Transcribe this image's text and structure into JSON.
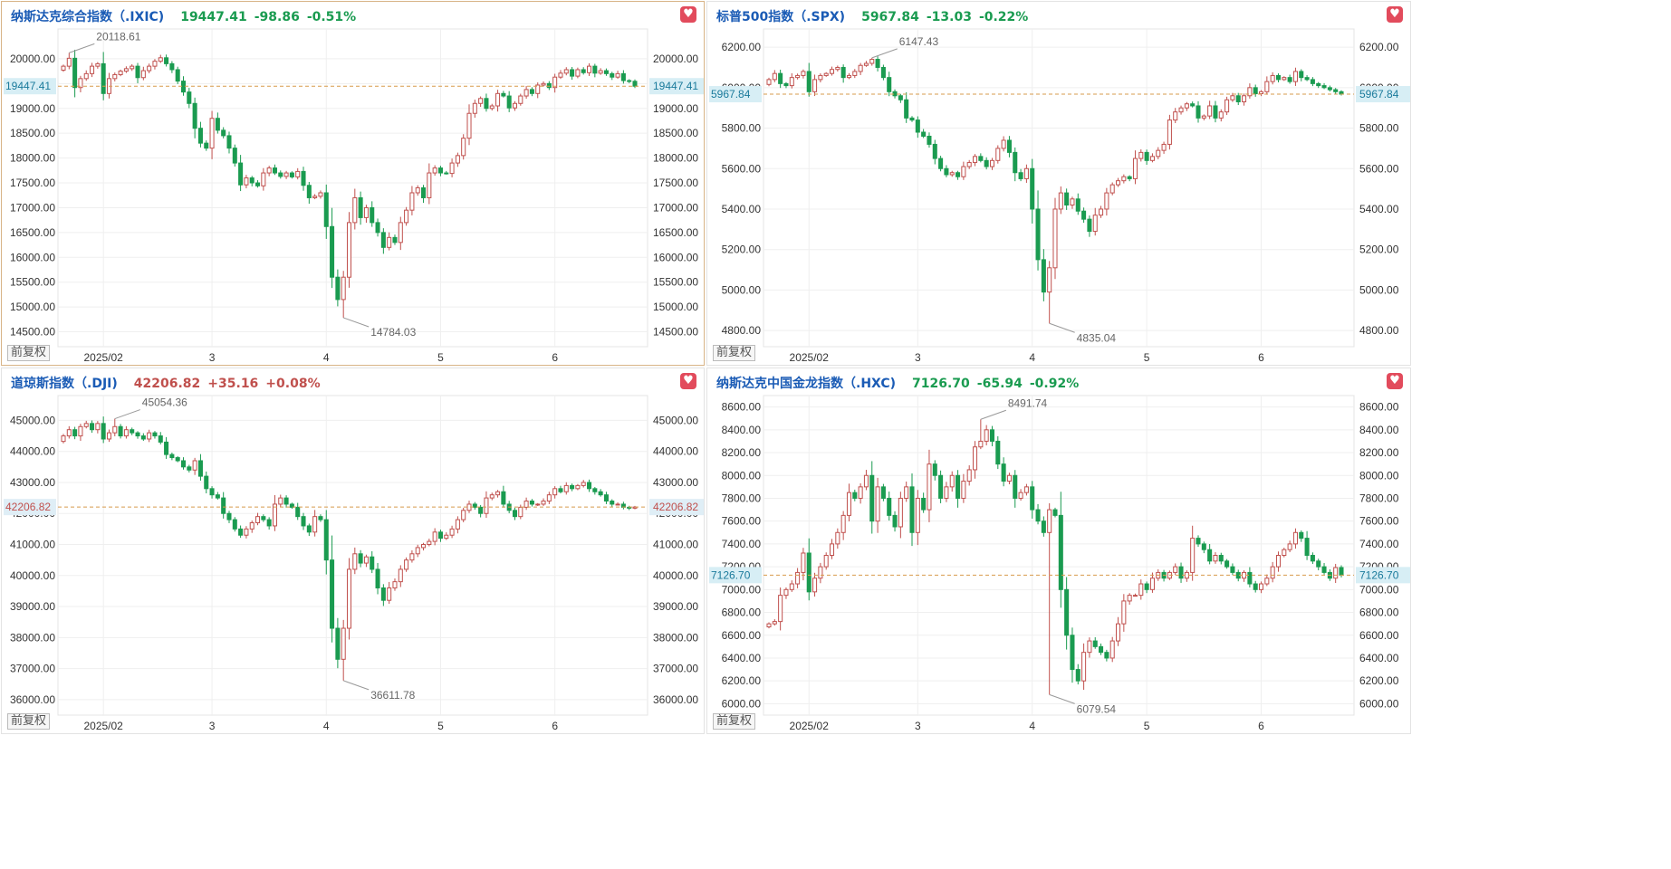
{
  "colors": {
    "up": "#c0504d",
    "down": "#1a9b50",
    "title": "#1a5bb5",
    "refline": "#d79b4c",
    "favorite": "#e24b5c"
  },
  "adj_label": "前复权",
  "favorite_icon": "heart-icon",
  "panels": [
    {
      "title": "纳斯达克综合指数（.IXIC)",
      "value": "19447.41",
      "change": "-98.86",
      "pct": "-0.51%",
      "direction": "down",
      "chart_data": {
        "type": "candlestick",
        "y_ticks": [
          "20000.00",
          "19500.00",
          "19000.00",
          "18500.00",
          "18000.00",
          "17500.00",
          "17000.00",
          "16500.00",
          "16000.00",
          "15500.00",
          "15000.00",
          "14500.00"
        ],
        "ylim": [
          14200,
          20600
        ],
        "x_labels": [
          "2025/02",
          "3",
          "4",
          "5",
          "6"
        ],
        "x_label_index": [
          7,
          26,
          46,
          66,
          86
        ],
        "last_value": 19447.41,
        "last_label": "19447.41",
        "high": {
          "value": 20118.61,
          "label": "20118.61",
          "index": 1
        },
        "low": {
          "value": 14784.03,
          "label": "14784.03",
          "index": 49
        },
        "n": 101,
        "closes": [
          19850,
          20010,
          19420,
          19600,
          19700,
          19850,
          19900,
          19300,
          19600,
          19680,
          19750,
          19800,
          19850,
          19620,
          19760,
          19850,
          19950,
          20020,
          19900,
          19780,
          19550,
          19330,
          19100,
          18600,
          18300,
          18200,
          18800,
          18560,
          18450,
          18200,
          17900,
          17460,
          17600,
          17500,
          17440,
          17700,
          17800,
          17700,
          17630,
          17700,
          17620,
          17730,
          17450,
          17200,
          17230,
          17300,
          16620,
          15600,
          15150,
          15600,
          16700,
          17200,
          16800,
          17000,
          16700,
          16500,
          16200,
          16400,
          16300,
          16700,
          16950,
          17300,
          17400,
          17200,
          17700,
          17800,
          17700,
          17690,
          17900,
          18050,
          18400,
          18900,
          19100,
          19200,
          19000,
          19050,
          19300,
          19250,
          19010,
          19100,
          19250,
          19380,
          19300,
          19470,
          19500,
          19420,
          19630,
          19710,
          19780,
          19650,
          19780,
          19720,
          19850,
          19710,
          19760,
          19700,
          19630,
          19700,
          19560,
          19546,
          19447
        ]
      }
    },
    {
      "title": "标普500指数（.SPX)",
      "value": "5967.84",
      "change": "-13.03",
      "pct": "-0.22%",
      "direction": "down",
      "chart_data": {
        "type": "candlestick",
        "y_ticks": [
          "6200.00",
          "6000.00",
          "5800.00",
          "5600.00",
          "5400.00",
          "5200.00",
          "5000.00",
          "4800.00"
        ],
        "ylim": [
          4720,
          6290
        ],
        "x_labels": [
          "2025/02",
          "3",
          "4",
          "5",
          "6"
        ],
        "x_label_index": [
          7,
          26,
          46,
          66,
          86
        ],
        "last_value": 5967.84,
        "last_label": "5967.84",
        "high": {
          "value": 6147.43,
          "label": "6147.43",
          "index": 18
        },
        "low": {
          "value": 4835.04,
          "label": "4835.04",
          "index": 49
        },
        "n": 101,
        "closes": [
          6040,
          6070,
          6020,
          6010,
          6050,
          6060,
          6080,
          5980,
          6040,
          6060,
          6070,
          6090,
          6100,
          6050,
          6060,
          6080,
          6110,
          6120,
          6140,
          6100,
          6050,
          5980,
          5960,
          5940,
          5850,
          5840,
          5780,
          5760,
          5720,
          5650,
          5600,
          5570,
          5580,
          5560,
          5610,
          5630,
          5660,
          5640,
          5610,
          5640,
          5700,
          5740,
          5680,
          5580,
          5550,
          5600,
          5400,
          5150,
          4990,
          5110,
          5400,
          5480,
          5420,
          5450,
          5390,
          5350,
          5290,
          5370,
          5400,
          5480,
          5520,
          5540,
          5560,
          5550,
          5650,
          5680,
          5640,
          5660,
          5690,
          5720,
          5840,
          5880,
          5900,
          5920,
          5910,
          5850,
          5860,
          5910,
          5850,
          5880,
          5940,
          5960,
          5930,
          5960,
          6000,
          5970,
          5980,
          6030,
          6060,
          6040,
          6050,
          6030,
          6080,
          6050,
          6040,
          6020,
          6010,
          6000,
          5990,
          5980,
          5968
        ]
      }
    },
    {
      "title": "道琼斯指数（.DJI)",
      "value": "42206.82",
      "change": "+35.16",
      "pct": "+0.08%",
      "direction": "up",
      "chart_data": {
        "type": "candlestick",
        "y_ticks": [
          "45000.00",
          "44000.00",
          "43000.00",
          "42000.00",
          "41000.00",
          "40000.00",
          "39000.00",
          "38000.00",
          "37000.00",
          "36000.00"
        ],
        "ylim": [
          35500,
          45800
        ],
        "x_labels": [
          "2025/02",
          "3",
          "4",
          "5",
          "6"
        ],
        "x_label_index": [
          7,
          26,
          46,
          66,
          86
        ],
        "last_value": 42206.82,
        "last_label": "42206.82",
        "high": {
          "value": 45054.36,
          "label": "45054.36",
          "index": 9
        },
        "low": {
          "value": 36611.78,
          "label": "36611.78",
          "index": 49
        },
        "n": 101,
        "closes": [
          44500,
          44700,
          44500,
          44800,
          44900,
          44700,
          44900,
          44400,
          44600,
          44800,
          44500,
          44700,
          44600,
          44500,
          44400,
          44600,
          44500,
          44300,
          43900,
          43800,
          43700,
          43500,
          43400,
          43700,
          43200,
          42800,
          42600,
          42500,
          42000,
          41800,
          41500,
          41300,
          41500,
          41700,
          41900,
          41800,
          41600,
          42300,
          42500,
          42300,
          42200,
          41900,
          41600,
          41400,
          41900,
          41800,
          40500,
          38300,
          37300,
          38300,
          40200,
          40700,
          40400,
          40600,
          40200,
          39600,
          39200,
          39600,
          39800,
          40200,
          40500,
          40700,
          40900,
          41000,
          41100,
          41400,
          41200,
          41300,
          41500,
          41800,
          42100,
          42300,
          42200,
          42000,
          42500,
          42600,
          42700,
          42300,
          42100,
          41900,
          42200,
          42400,
          42300,
          42300,
          42400,
          42600,
          42800,
          42700,
          42900,
          42800,
          42900,
          43000,
          42800,
          42700,
          42600,
          42400,
          42300,
          42300,
          42200,
          42171,
          42207
        ]
      }
    },
    {
      "title": "纳斯达克中国金龙指数（.HXC)",
      "value": "7126.70",
      "change": "-65.94",
      "pct": "-0.92%",
      "direction": "down",
      "chart_data": {
        "type": "candlestick",
        "y_ticks": [
          "8600.00",
          "8400.00",
          "8200.00",
          "8000.00",
          "7800.00",
          "7600.00",
          "7400.00",
          "7200.00",
          "7000.00",
          "6800.00",
          "6600.00",
          "6400.00",
          "6200.00",
          "6000.00"
        ],
        "ylim": [
          5900,
          8700
        ],
        "x_labels": [
          "2025/02",
          "3",
          "4",
          "5",
          "6"
        ],
        "x_label_index": [
          7,
          26,
          46,
          66,
          86
        ],
        "last_value": 7126.7,
        "last_label": "7126.70",
        "high": {
          "value": 8491.74,
          "label": "8491.74",
          "index": 37
        },
        "low": {
          "value": 6079.54,
          "label": "6079.54",
          "index": 49
        },
        "n": 101,
        "closes": [
          6700,
          6720,
          6950,
          7000,
          7050,
          7150,
          7320,
          6980,
          7100,
          7200,
          7300,
          7400,
          7500,
          7650,
          7850,
          7800,
          7900,
          8000,
          7600,
          7900,
          7800,
          7650,
          7550,
          7800,
          7900,
          7500,
          7800,
          7700,
          8100,
          8000,
          7800,
          7900,
          8000,
          7800,
          7950,
          8050,
          8250,
          8300,
          8400,
          8300,
          8100,
          7950,
          8000,
          7800,
          7850,
          7900,
          7700,
          7600,
          7500,
          7700,
          7650,
          7000,
          6600,
          6300,
          6200,
          6450,
          6550,
          6500,
          6450,
          6400,
          6550,
          6700,
          6900,
          6950,
          6950,
          7050,
          7000,
          7100,
          7150,
          7100,
          7150,
          7200,
          7100,
          7150,
          7450,
          7400,
          7350,
          7250,
          7300,
          7250,
          7200,
          7150,
          7100,
          7150,
          7050,
          7000,
          7050,
          7100,
          7200,
          7300,
          7350,
          7400,
          7500,
          7450,
          7300,
          7250,
          7200,
          7150,
          7100,
          7193,
          7127
        ]
      }
    }
  ]
}
